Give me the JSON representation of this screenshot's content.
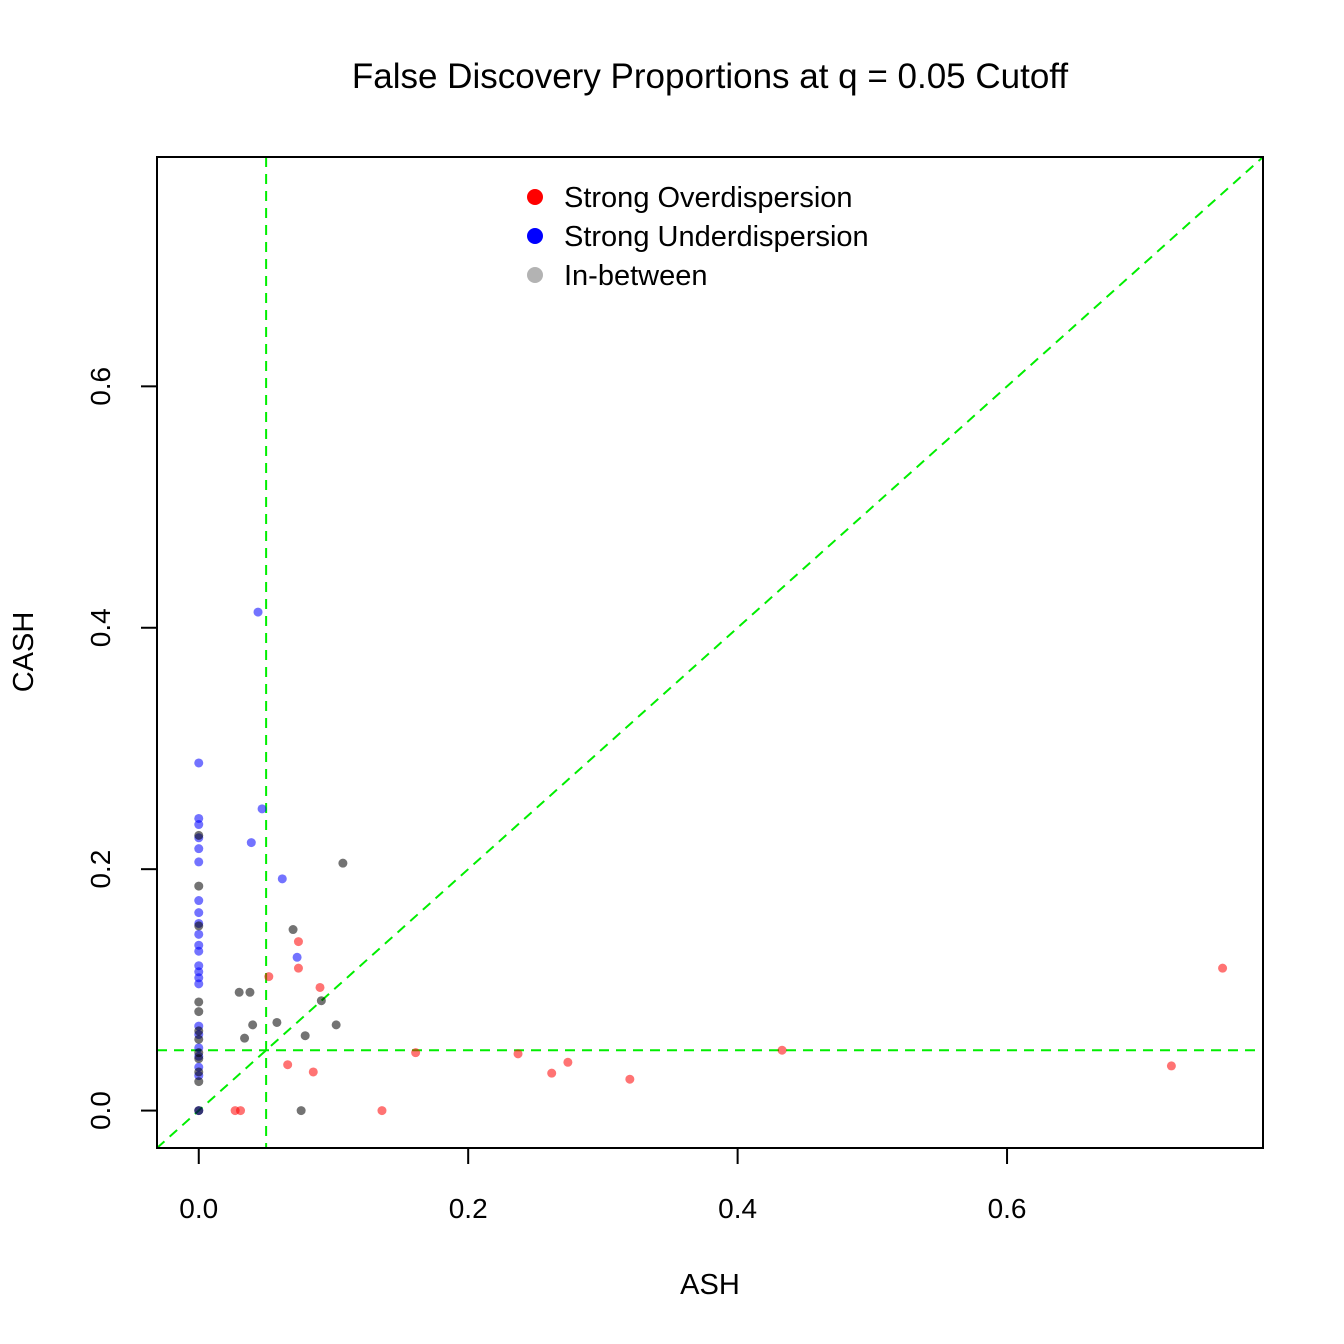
{
  "chart_data": {
    "type": "scatter",
    "title": "False Discovery Proportions at q = 0.05 Cutoff",
    "xlabel": "ASH",
    "ylabel": "CASH",
    "xlim": [
      -0.031,
      0.79
    ],
    "ylim": [
      -0.031,
      0.79
    ],
    "x_ticks": [
      0.0,
      0.2,
      0.4,
      0.6
    ],
    "x_tick_labels": [
      "0.0",
      "0.2",
      "0.4",
      "0.6"
    ],
    "y_ticks": [
      0.0,
      0.2,
      0.4,
      0.6
    ],
    "y_tick_labels": [
      "0.0",
      "0.2",
      "0.4",
      "0.6"
    ],
    "grid": false,
    "legend_position": "top-center",
    "reference_lines": [
      {
        "kind": "vertical",
        "x": 0.05,
        "color": "#00ee00",
        "style": "dashed"
      },
      {
        "kind": "horizontal",
        "y": 0.05,
        "color": "#00ee00",
        "style": "dashed"
      },
      {
        "kind": "diagonal",
        "slope": 1,
        "intercept": 0,
        "color": "#00ee00",
        "style": "dashed"
      }
    ],
    "series": [
      {
        "name": "Strong Overdispersion",
        "color": "#ff0000",
        "points": [
          [
            0.027,
            0.0
          ],
          [
            0.031,
            0.0
          ],
          [
            0.136,
            0.0
          ],
          [
            0.052,
            0.111
          ],
          [
            0.066,
            0.038
          ],
          [
            0.074,
            0.14
          ],
          [
            0.074,
            0.118
          ],
          [
            0.085,
            0.032
          ],
          [
            0.09,
            0.102
          ],
          [
            0.161,
            0.048
          ],
          [
            0.237,
            0.047
          ],
          [
            0.262,
            0.031
          ],
          [
            0.274,
            0.04
          ],
          [
            0.32,
            0.026
          ],
          [
            0.433,
            0.05
          ],
          [
            0.722,
            0.037
          ],
          [
            0.76,
            0.118
          ]
        ]
      },
      {
        "name": "Strong Underdispersion",
        "color": "#0000ff",
        "points": [
          [
            0.0,
            0.288
          ],
          [
            0.0,
            0.242
          ],
          [
            0.0,
            0.237
          ],
          [
            0.0,
            0.226
          ],
          [
            0.0,
            0.217
          ],
          [
            0.0,
            0.206
          ],
          [
            0.0,
            0.174
          ],
          [
            0.0,
            0.164
          ],
          [
            0.0,
            0.155
          ],
          [
            0.0,
            0.146
          ],
          [
            0.0,
            0.137
          ],
          [
            0.0,
            0.132
          ],
          [
            0.0,
            0.12
          ],
          [
            0.0,
            0.115
          ],
          [
            0.0,
            0.11
          ],
          [
            0.0,
            0.105
          ],
          [
            0.0,
            0.07
          ],
          [
            0.0,
            0.063
          ],
          [
            0.0,
            0.052
          ],
          [
            0.0,
            0.045
          ],
          [
            0.0,
            0.036
          ],
          [
            0.0,
            0.029
          ],
          [
            0.0,
            0.0
          ],
          [
            0.044,
            0.413
          ],
          [
            0.047,
            0.25
          ],
          [
            0.039,
            0.222
          ],
          [
            0.062,
            0.192
          ],
          [
            0.073,
            0.127
          ]
        ]
      },
      {
        "name": "In-between",
        "color": "#000000",
        "points": [
          [
            0.0,
            0.228
          ],
          [
            0.0,
            0.186
          ],
          [
            0.0,
            0.153
          ],
          [
            0.0,
            0.09
          ],
          [
            0.0,
            0.082
          ],
          [
            0.0,
            0.066
          ],
          [
            0.0,
            0.059
          ],
          [
            0.0,
            0.048
          ],
          [
            0.0,
            0.043
          ],
          [
            0.0,
            0.032
          ],
          [
            0.0,
            0.024
          ],
          [
            0.0,
            0.0
          ],
          [
            0.03,
            0.098
          ],
          [
            0.038,
            0.098
          ],
          [
            0.034,
            0.06
          ],
          [
            0.04,
            0.071
          ],
          [
            0.058,
            0.073
          ],
          [
            0.07,
            0.15
          ],
          [
            0.076,
            0.0
          ],
          [
            0.079,
            0.062
          ],
          [
            0.091,
            0.091
          ],
          [
            0.102,
            0.071
          ],
          [
            0.107,
            0.205
          ]
        ]
      }
    ]
  }
}
